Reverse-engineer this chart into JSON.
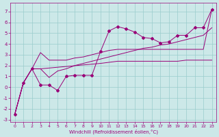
{
  "xlabel": "Windchill (Refroidissement éolien,°C)",
  "background_color": "#cce8e8",
  "grid_color": "#99cccc",
  "line_color": "#990077",
  "xlim": [
    -0.5,
    23.5
  ],
  "ylim": [
    -3.2,
    7.8
  ],
  "xticks": [
    0,
    1,
    2,
    3,
    4,
    5,
    6,
    7,
    8,
    9,
    10,
    11,
    12,
    13,
    14,
    15,
    16,
    17,
    18,
    19,
    20,
    21,
    22,
    23
  ],
  "yticks": [
    -3,
    -2,
    -1,
    0,
    1,
    2,
    3,
    4,
    5,
    6,
    7
  ],
  "series_markers": {
    "x": [
      0,
      1,
      2,
      3,
      4,
      5,
      6,
      7,
      8,
      9,
      10,
      11,
      12,
      13,
      14,
      15,
      16,
      17,
      18,
      19,
      20,
      21,
      22,
      23
    ],
    "y": [
      -2.5,
      0.4,
      1.7,
      0.2,
      0.2,
      -0.3,
      1.0,
      1.1,
      1.1,
      1.1,
      3.3,
      5.2,
      5.6,
      5.4,
      5.1,
      4.6,
      4.5,
      4.1,
      4.2,
      4.8,
      4.8,
      5.5,
      5.5,
      7.2
    ]
  },
  "series_line1": {
    "x": [
      0,
      1,
      2,
      3,
      4,
      5,
      6,
      7,
      8,
      9,
      10,
      11,
      12,
      13,
      14,
      15,
      16,
      17,
      18,
      19,
      20,
      21,
      22,
      23
    ],
    "y": [
      -2.5,
      0.4,
      1.7,
      1.7,
      0.9,
      1.5,
      1.7,
      2.0,
      2.2,
      2.4,
      2.6,
      2.8,
      3.0,
      3.2,
      3.4,
      3.6,
      3.7,
      3.9,
      4.0,
      4.2,
      4.4,
      4.6,
      4.8,
      5.5
    ]
  },
  "series_line2": {
    "x": [
      0,
      1,
      2,
      3,
      4,
      5,
      6,
      7,
      8,
      9,
      10,
      11,
      12,
      13,
      14,
      15,
      16,
      17,
      18,
      19,
      20,
      21,
      22,
      23
    ],
    "y": [
      -2.5,
      0.4,
      1.7,
      3.2,
      2.5,
      2.5,
      2.5,
      2.7,
      2.8,
      3.0,
      3.2,
      3.4,
      3.5,
      3.5,
      3.5,
      3.5,
      3.5,
      3.5,
      3.5,
      3.5,
      3.5,
      3.5,
      3.5,
      7.2
    ]
  },
  "series_line3": {
    "x": [
      0,
      1,
      2,
      3,
      10,
      11,
      12,
      13,
      14,
      15,
      16,
      17,
      18,
      19,
      20,
      21,
      22,
      23
    ],
    "y": [
      -2.5,
      0.4,
      1.7,
      1.7,
      2.2,
      2.3,
      2.4,
      2.4,
      2.4,
      2.4,
      2.4,
      2.4,
      2.4,
      2.4,
      2.5,
      2.5,
      2.5,
      2.5
    ]
  }
}
